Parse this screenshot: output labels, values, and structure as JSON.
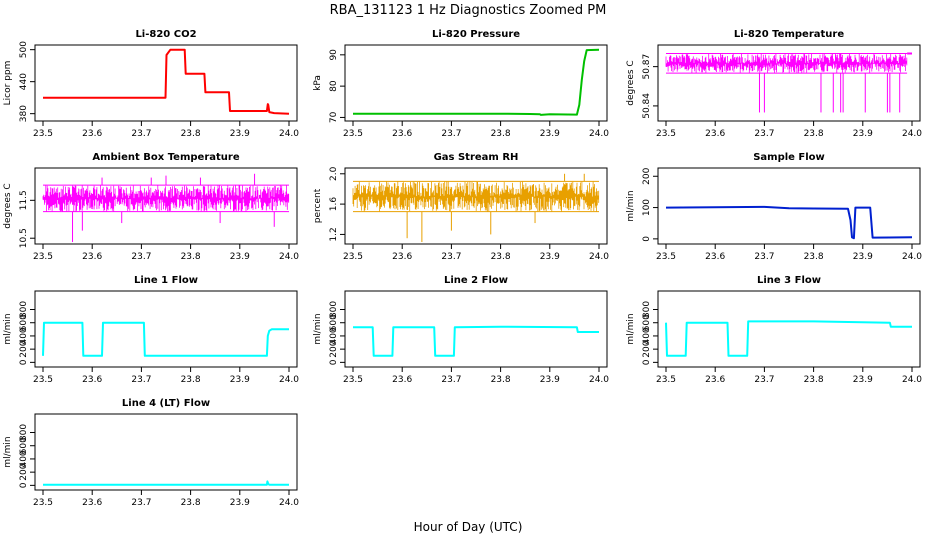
{
  "figure": {
    "title": "RBA_131123  1 Hz Diagnostics Zoomed PM",
    "xlabel": "Hour of Day (UTC)"
  },
  "chart_data": [
    {
      "type": "line",
      "title": "Li-820 CO2",
      "ylabel": "Licor ppm",
      "color": "#ff0000",
      "xlim": [
        23.5,
        24.0
      ],
      "ylim": [
        370,
        505
      ],
      "xticks": [
        "23.5",
        "23.6",
        "23.7",
        "23.8",
        "23.9",
        "24.0"
      ],
      "yticks": [
        380,
        440,
        500
      ],
      "yticklabels": [
        "380",
        "440",
        "500"
      ],
      "series": [
        {
          "x": [
            23.5,
            23.749,
            23.751,
            23.759,
            23.76,
            23.788,
            23.79,
            23.828,
            23.83,
            23.878,
            23.88,
            23.955,
            23.957,
            23.958,
            23.96,
            23.97,
            24.0
          ],
          "y": [
            410,
            410,
            490,
            500,
            500,
            500,
            455,
            455,
            420,
            420,
            385,
            385,
            398,
            396,
            383,
            381,
            380
          ]
        }
      ]
    },
    {
      "type": "line",
      "title": "Li-820 Pressure",
      "ylabel": "kPa",
      "color": "#00c000",
      "xlim": [
        23.5,
        24.0
      ],
      "ylim": [
        69.5,
        92.5
      ],
      "xticks": [
        "23.5",
        "23.6",
        "23.7",
        "23.8",
        "23.9",
        "24.0"
      ],
      "yticks": [
        70,
        80,
        90
      ],
      "yticklabels": [
        "70",
        "80",
        "90"
      ],
      "series": [
        {
          "x": [
            23.5,
            23.8,
            23.86,
            23.88,
            23.882,
            23.9,
            23.955,
            23.96,
            23.965,
            23.97,
            23.975,
            24.0
          ],
          "y": [
            71.2,
            71.2,
            71.1,
            71.0,
            70.8,
            71.0,
            70.9,
            74,
            82,
            88,
            91.5,
            91.6
          ]
        }
      ]
    },
    {
      "type": "line",
      "title": "Li-820 Temperature",
      "ylabel": "degrees C",
      "color": "#ff00ff",
      "xlim": [
        23.5,
        24.0
      ],
      "ylim": [
        50.83,
        50.885
      ],
      "xticks": [
        "23.5",
        "23.6",
        "23.7",
        "23.8",
        "23.9",
        "24.0"
      ],
      "yticks": [
        50.84,
        50.87
      ],
      "yticklabels": [
        "50.84",
        "50.87"
      ],
      "band": {
        "x_from": 23.5,
        "x_to": 23.99,
        "y_low": 50.865,
        "y_high": 50.88
      },
      "series": [
        {
          "x": [
            23.99,
            24.0
          ],
          "y": [
            50.88,
            50.88
          ]
        }
      ],
      "spikes": [
        {
          "x": 23.69,
          "y": 50.835
        },
        {
          "x": 23.7,
          "y": 50.835
        },
        {
          "x": 23.815,
          "y": 50.835
        },
        {
          "x": 23.84,
          "y": 50.835
        },
        {
          "x": 23.855,
          "y": 50.835
        },
        {
          "x": 23.86,
          "y": 50.835
        },
        {
          "x": 23.905,
          "y": 50.835
        },
        {
          "x": 23.95,
          "y": 50.835
        },
        {
          "x": 23.955,
          "y": 50.835
        },
        {
          "x": 23.975,
          "y": 50.835
        }
      ]
    },
    {
      "type": "line",
      "title": "Ambient Box Temperature",
      "ylabel": "degrees C",
      "color": "#ff00ff",
      "xlim": [
        23.5,
        24.0
      ],
      "ylim": [
        10.4,
        12.3
      ],
      "xticks": [
        "23.5",
        "23.6",
        "23.7",
        "23.8",
        "23.9",
        "24.0"
      ],
      "yticks": [
        10.5,
        11.5
      ],
      "yticklabels": [
        "10.5",
        "11.5"
      ],
      "band": {
        "x_from": 23.5,
        "x_to": 24.0,
        "y_low": 11.2,
        "y_high": 11.9
      },
      "spikes": [
        {
          "x": 23.56,
          "y": 10.4
        },
        {
          "x": 23.58,
          "y": 10.7
        },
        {
          "x": 23.62,
          "y": 12.1
        },
        {
          "x": 23.66,
          "y": 10.9
        },
        {
          "x": 23.72,
          "y": 12.1
        },
        {
          "x": 23.75,
          "y": 12.15
        },
        {
          "x": 23.82,
          "y": 12.1
        },
        {
          "x": 23.86,
          "y": 10.9
        },
        {
          "x": 23.93,
          "y": 12.2
        },
        {
          "x": 23.97,
          "y": 10.8
        }
      ]
    },
    {
      "type": "line",
      "title": "Gas Stream RH",
      "ylabel": "percent",
      "color": "#e8a000",
      "xlim": [
        23.5,
        24.0
      ],
      "ylim": [
        1.1,
        2.05
      ],
      "xticks": [
        "23.5",
        "23.6",
        "23.7",
        "23.8",
        "23.9",
        "24.0"
      ],
      "yticks": [
        1.2,
        1.6,
        2.0
      ],
      "yticklabels": [
        "1.2",
        "1.6",
        "2.0"
      ],
      "band": {
        "x_from": 23.5,
        "x_to": 24.0,
        "y_low": 1.5,
        "y_high": 1.9
      },
      "spikes": [
        {
          "x": 23.61,
          "y": 1.15
        },
        {
          "x": 23.64,
          "y": 1.1
        },
        {
          "x": 23.7,
          "y": 1.25
        },
        {
          "x": 23.78,
          "y": 1.2
        },
        {
          "x": 23.87,
          "y": 1.35
        },
        {
          "x": 23.93,
          "y": 2.0
        },
        {
          "x": 23.97,
          "y": 2.0
        }
      ]
    },
    {
      "type": "line",
      "title": "Sample Flow",
      "ylabel": "ml/min",
      "color": "#0020d0",
      "xlim": [
        23.5,
        24.0
      ],
      "ylim": [
        -10,
        220
      ],
      "xticks": [
        "23.5",
        "23.6",
        "23.7",
        "23.8",
        "23.9",
        "24.0"
      ],
      "yticks": [
        0,
        100,
        200
      ],
      "yticklabels": [
        "0",
        "100",
        "200"
      ],
      "series": [
        {
          "x": [
            23.5,
            23.7,
            23.75,
            23.8,
            23.87,
            23.875,
            23.878,
            23.882,
            23.885,
            23.915,
            23.92,
            24.0
          ],
          "y": [
            100,
            102,
            98,
            97,
            96,
            60,
            5,
            2,
            100,
            100,
            4,
            5
          ]
        }
      ]
    },
    {
      "type": "line",
      "title": "Line 1 Flow",
      "ylabel": "ml/min",
      "color": "#00ffff",
      "xlim": [
        23.5,
        24.0
      ],
      "ylim": [
        -40,
        1050
      ],
      "xticks": [
        "23.5",
        "23.6",
        "23.7",
        "23.8",
        "23.9",
        "24.0"
      ],
      "yticks": [
        0,
        200,
        400,
        600,
        800
      ],
      "yticklabels": [
        "0",
        "200",
        "400",
        "600",
        "800"
      ],
      "series": [
        {
          "x": [
            23.5,
            23.502,
            23.58,
            23.582,
            23.62,
            23.622,
            23.705,
            23.707,
            23.955,
            23.957,
            23.96,
            23.965,
            24.0
          ],
          "y": [
            100,
            600,
            600,
            100,
            100,
            600,
            600,
            100,
            100,
            400,
            480,
            500,
            500
          ]
        }
      ]
    },
    {
      "type": "line",
      "title": "Line 2 Flow",
      "ylabel": "ml/min",
      "color": "#00ffff",
      "xlim": [
        23.5,
        24.0
      ],
      "ylim": [
        -40,
        1050
      ],
      "xticks": [
        "23.5",
        "23.6",
        "23.7",
        "23.8",
        "23.9",
        "24.0"
      ],
      "yticks": [
        0,
        200,
        400,
        600,
        800
      ],
      "yticklabels": [
        "0",
        "200",
        "400",
        "600",
        "800"
      ],
      "series": [
        {
          "x": [
            23.5,
            23.54,
            23.542,
            23.58,
            23.582,
            23.665,
            23.667,
            23.705,
            23.707,
            23.8,
            23.955,
            23.957,
            24.0
          ],
          "y": [
            530,
            530,
            100,
            100,
            530,
            530,
            100,
            100,
            530,
            540,
            530,
            460,
            460
          ]
        }
      ]
    },
    {
      "type": "line",
      "title": "Line 3 Flow",
      "ylabel": "ml/min",
      "color": "#00ffff",
      "xlim": [
        23.5,
        24.0
      ],
      "ylim": [
        -40,
        1050
      ],
      "xticks": [
        "23.5",
        "23.6",
        "23.7",
        "23.8",
        "23.9",
        "24.0"
      ],
      "yticks": [
        0,
        200,
        400,
        600,
        800
      ],
      "yticklabels": [
        "0",
        "200",
        "400",
        "600",
        "800"
      ],
      "series": [
        {
          "x": [
            23.5,
            23.502,
            23.54,
            23.542,
            23.625,
            23.627,
            23.665,
            23.667,
            23.8,
            23.955,
            23.957,
            24.0
          ],
          "y": [
            600,
            100,
            100,
            600,
            600,
            100,
            100,
            620,
            620,
            600,
            540,
            540
          ]
        }
      ]
    },
    {
      "type": "line",
      "title": "Line 4 (LT) Flow",
      "ylabel": "ml/min",
      "color": "#00ffff",
      "xlim": [
        23.5,
        24.0
      ],
      "ylim": [
        -40,
        1050
      ],
      "xticks": [
        "23.5",
        "23.6",
        "23.7",
        "23.8",
        "23.9",
        "24.0"
      ],
      "yticks": [
        0,
        200,
        400,
        600,
        800
      ],
      "yticklabels": [
        "0",
        "200",
        "400",
        "600",
        "800"
      ],
      "series": [
        {
          "x": [
            23.5,
            23.955,
            23.956,
            23.958,
            23.96,
            24.0
          ],
          "y": [
            10,
            10,
            60,
            20,
            10,
            10
          ]
        }
      ]
    }
  ]
}
